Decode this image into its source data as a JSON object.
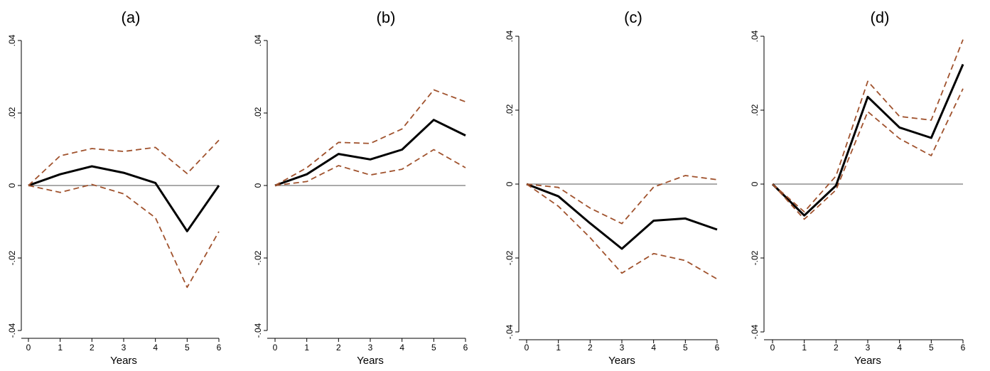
{
  "colors": {
    "estimate": "#000000",
    "confidence_band": "#A0522D",
    "zero_line": "#777777",
    "axis": "#000000"
  },
  "chart_data": [
    {
      "type": "line",
      "title": "(a)",
      "xlabel": "Years",
      "ylabel": "",
      "x": [
        0,
        1,
        2,
        3,
        4,
        5,
        6
      ],
      "x_tick_labels": [
        "0",
        "1",
        "2",
        "3",
        "4",
        "5",
        "6"
      ],
      "y_ticks": [
        -0.04,
        -0.02,
        0,
        0.02,
        0.04
      ],
      "y_tick_labels": [
        "-.04",
        "-.02",
        "0",
        ".02",
        ".04"
      ],
      "ylim": [
        -0.04,
        0.04
      ],
      "xlim": [
        0,
        6
      ],
      "grid": false,
      "series": [
        {
          "style": "solid",
          "values": [
            0.0,
            0.0031,
            0.0053,
            0.0035,
            0.0007,
            -0.0126,
            0.0
          ]
        },
        {
          "style": "dashed",
          "values": [
            0.0,
            0.0082,
            0.0102,
            0.0094,
            0.0105,
            0.0033,
            0.0125
          ]
        },
        {
          "style": "dashed",
          "values": [
            0.0,
            -0.0019,
            0.0003,
            -0.0023,
            -0.0089,
            -0.0281,
            -0.0127
          ]
        }
      ]
    },
    {
      "type": "line",
      "title": "(b)",
      "xlabel": "Years",
      "ylabel": "",
      "x": [
        0,
        1,
        2,
        3,
        4,
        5,
        6
      ],
      "x_tick_labels": [
        "0",
        "1",
        "2",
        "3",
        "4",
        "5",
        "6"
      ],
      "y_ticks": [
        -0.04,
        -0.02,
        0,
        0.02,
        0.04
      ],
      "y_tick_labels": [
        "-.04",
        "-.02",
        "0",
        ".02",
        ".04"
      ],
      "ylim": [
        -0.04,
        0.04
      ],
      "xlim": [
        0,
        6
      ],
      "grid": false,
      "series": [
        {
          "style": "solid",
          "values": [
            0.0,
            0.0031,
            0.0087,
            0.0072,
            0.0099,
            0.0181,
            0.0138
          ]
        },
        {
          "style": "dashed",
          "values": [
            0.0,
            0.0049,
            0.0119,
            0.0116,
            0.0156,
            0.0264,
            0.0231
          ]
        },
        {
          "style": "dashed",
          "values": [
            0.0,
            0.0011,
            0.0055,
            0.0029,
            0.0045,
            0.0099,
            0.0049
          ]
        }
      ]
    },
    {
      "type": "line",
      "title": "(c)",
      "xlabel": "Years",
      "ylabel": "",
      "x": [
        0,
        1,
        2,
        3,
        4,
        5,
        6
      ],
      "x_tick_labels": [
        "0",
        "1",
        "2",
        "3",
        "4",
        "5",
        "6"
      ],
      "y_ticks": [
        -0.04,
        -0.02,
        0,
        0.02,
        0.04
      ],
      "y_tick_labels": [
        "-.04",
        "-.02",
        "0",
        ".02",
        ".04"
      ],
      "ylim": [
        -0.04,
        0.04
      ],
      "xlim": [
        0,
        6
      ],
      "grid": false,
      "series": [
        {
          "style": "solid",
          "values": [
            0.0,
            -0.0033,
            -0.0106,
            -0.0175,
            -0.0099,
            -0.0093,
            -0.0123
          ]
        },
        {
          "style": "dashed",
          "values": [
            0.0,
            -0.0009,
            -0.0065,
            -0.0107,
            -0.0008,
            0.0023,
            0.0012
          ]
        },
        {
          "style": "dashed",
          "values": [
            0.0,
            -0.006,
            -0.0145,
            -0.0241,
            -0.0188,
            -0.0207,
            -0.0257
          ]
        }
      ]
    },
    {
      "type": "line",
      "title": "(d)",
      "xlabel": "Years",
      "ylabel": "",
      "x": [
        0,
        1,
        2,
        3,
        4,
        5,
        6
      ],
      "x_tick_labels": [
        "0",
        "1",
        "2",
        "3",
        "4",
        "5",
        "6"
      ],
      "y_ticks": [
        -0.04,
        -0.02,
        0,
        0.02,
        0.04
      ],
      "y_tick_labels": [
        "-.04",
        "-.02",
        "0",
        ".02",
        ".04"
      ],
      "ylim": [
        -0.04,
        0.04
      ],
      "xlim": [
        0,
        6
      ],
      "grid": false,
      "series": [
        {
          "style": "solid",
          "values": [
            0.0,
            -0.0085,
            -0.0004,
            0.0236,
            0.0153,
            0.0125,
            0.0324
          ]
        },
        {
          "style": "dashed",
          "values": [
            0.0,
            -0.0075,
            0.0022,
            0.0278,
            0.0183,
            0.0173,
            0.0391
          ]
        },
        {
          "style": "dashed",
          "values": [
            0.0,
            -0.0095,
            -0.0016,
            0.0196,
            0.0123,
            0.0077,
            0.0258
          ]
        }
      ]
    }
  ]
}
